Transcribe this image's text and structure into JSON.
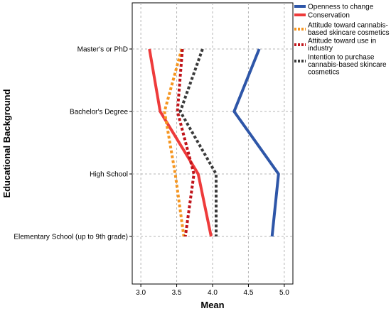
{
  "chart_data": {
    "type": "line",
    "orientation": "horizontal",
    "xlabel": "Mean",
    "ylabel": "Educational Background",
    "xlim": [
      2.88,
      5.12
    ],
    "xticks": [
      "3.0",
      "3.5",
      "4.0",
      "4.5",
      "5.0"
    ],
    "xtick_values": [
      3.0,
      3.5,
      4.0,
      4.5,
      5.0
    ],
    "categories": [
      "Master's or PhD",
      "Bachelor's Degree",
      "High School",
      "Elementary School (up to 9th grade)"
    ],
    "grid": true,
    "legend_position": "top-right",
    "series": [
      {
        "name": "Openness to change",
        "values": [
          4.65,
          4.3,
          4.92,
          4.83
        ],
        "color": "#2e56a8",
        "dash": "solid"
      },
      {
        "name": "Conservation",
        "values": [
          3.12,
          3.27,
          3.8,
          3.98
        ],
        "color": "#ee3b3b",
        "dash": "solid"
      },
      {
        "name": "Attitude toward cannabis-based skincare cosmetics",
        "values": [
          3.57,
          3.33,
          3.48,
          3.6
        ],
        "color": "#f5951f",
        "dash": "dotted"
      },
      {
        "name": "Attitude toward use in industry",
        "values": [
          3.58,
          3.51,
          3.74,
          3.62
        ],
        "color": "#c0141a",
        "dash": "dotted"
      },
      {
        "name": "Intention to purchase cannabis-based skincare cosmetics",
        "values": [
          3.86,
          3.55,
          4.05,
          4.05
        ],
        "color": "#3a3a3a",
        "dash": "dotted"
      }
    ]
  },
  "legend_labels": [
    [
      "Openness to change"
    ],
    [
      "Conservation"
    ],
    [
      "Attitude toward cannabis-",
      "based skincare cosmetics"
    ],
    [
      "Attitude toward use in",
      "industry"
    ],
    [
      "Intention to purchase",
      "cannabis-based skincare",
      "cosmetics"
    ]
  ]
}
